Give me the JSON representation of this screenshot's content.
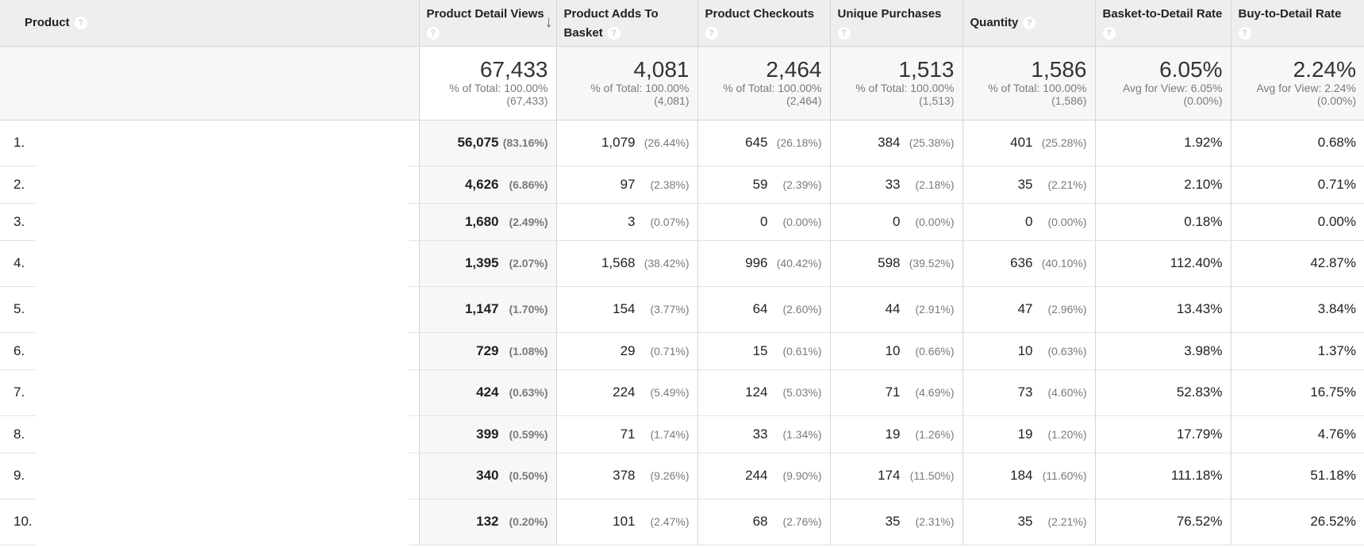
{
  "columns": {
    "product": "Product",
    "product_detail_views": "Product Detail Views",
    "product_adds": "Product Adds To Basket",
    "product_checkouts": "Product Checkouts",
    "unique_purchases": "Unique Purchases",
    "quantity": "Quantity",
    "basket_to_detail": "Basket-to-Detail Rate",
    "buy_to_detail": "Buy-to-Detail Rate"
  },
  "icons": {
    "help": "help-icon",
    "sort": "sort-descending-arrow-icon"
  },
  "totals": {
    "pdv": {
      "value": "67,433",
      "line1": "% of Total: 100.00%",
      "line2": "(67,433)"
    },
    "adds": {
      "value": "4,081",
      "line1": "% of Total: 100.00%",
      "line2": "(4,081)"
    },
    "checkouts": {
      "value": "2,464",
      "line1": "% of Total: 100.00%",
      "line2": "(2,464)"
    },
    "unique": {
      "value": "1,513",
      "line1": "% of Total: 100.00%",
      "line2": "(1,513)"
    },
    "quantity": {
      "value": "1,586",
      "line1": "% of Total: 100.00%",
      "line2": "(1,586)"
    },
    "bdr": {
      "value": "6.05%",
      "line1": "Avg for View: 6.05%",
      "line2": "(0.00%)"
    },
    "buy": {
      "value": "2.24%",
      "line1": "Avg for View: 2.24%",
      "line2": "(0.00%)"
    }
  },
  "rows": [
    {
      "index": "1.",
      "pdv": "56,075",
      "pdv_pct": "(83.16%)",
      "adds": "1,079",
      "adds_pct": "(26.44%)",
      "chk": "645",
      "chk_pct": "(26.18%)",
      "uniq": "384",
      "uniq_pct": "(25.38%)",
      "qty": "401",
      "qty_pct": "(25.28%)",
      "bdr": "1.92%",
      "buy": "0.68%"
    },
    {
      "index": "2.",
      "pdv": "4,626",
      "pdv_pct": "(6.86%)",
      "adds": "97",
      "adds_pct": "(2.38%)",
      "chk": "59",
      "chk_pct": "(2.39%)",
      "uniq": "33",
      "uniq_pct": "(2.18%)",
      "qty": "35",
      "qty_pct": "(2.21%)",
      "bdr": "2.10%",
      "buy": "0.71%"
    },
    {
      "index": "3.",
      "pdv": "1,680",
      "pdv_pct": "(2.49%)",
      "adds": "3",
      "adds_pct": "(0.07%)",
      "chk": "0",
      "chk_pct": "(0.00%)",
      "uniq": "0",
      "uniq_pct": "(0.00%)",
      "qty": "0",
      "qty_pct": "(0.00%)",
      "bdr": "0.18%",
      "buy": "0.00%"
    },
    {
      "index": "4.",
      "pdv": "1,395",
      "pdv_pct": "(2.07%)",
      "adds": "1,568",
      "adds_pct": "(38.42%)",
      "chk": "996",
      "chk_pct": "(40.42%)",
      "uniq": "598",
      "uniq_pct": "(39.52%)",
      "qty": "636",
      "qty_pct": "(40.10%)",
      "bdr": "112.40%",
      "buy": "42.87%"
    },
    {
      "index": "5.",
      "pdv": "1,147",
      "pdv_pct": "(1.70%)",
      "adds": "154",
      "adds_pct": "(3.77%)",
      "chk": "64",
      "chk_pct": "(2.60%)",
      "uniq": "44",
      "uniq_pct": "(2.91%)",
      "qty": "47",
      "qty_pct": "(2.96%)",
      "bdr": "13.43%",
      "buy": "3.84%"
    },
    {
      "index": "6.",
      "pdv": "729",
      "pdv_pct": "(1.08%)",
      "adds": "29",
      "adds_pct": "(0.71%)",
      "chk": "15",
      "chk_pct": "(0.61%)",
      "uniq": "10",
      "uniq_pct": "(0.66%)",
      "qty": "10",
      "qty_pct": "(0.63%)",
      "bdr": "3.98%",
      "buy": "1.37%"
    },
    {
      "index": "7.",
      "pdv": "424",
      "pdv_pct": "(0.63%)",
      "adds": "224",
      "adds_pct": "(5.49%)",
      "chk": "124",
      "chk_pct": "(5.03%)",
      "uniq": "71",
      "uniq_pct": "(4.69%)",
      "qty": "73",
      "qty_pct": "(4.60%)",
      "bdr": "52.83%",
      "buy": "16.75%"
    },
    {
      "index": "8.",
      "pdv": "399",
      "pdv_pct": "(0.59%)",
      "adds": "71",
      "adds_pct": "(1.74%)",
      "chk": "33",
      "chk_pct": "(1.34%)",
      "uniq": "19",
      "uniq_pct": "(1.26%)",
      "qty": "19",
      "qty_pct": "(1.20%)",
      "bdr": "17.79%",
      "buy": "4.76%"
    },
    {
      "index": "9.",
      "pdv": "340",
      "pdv_pct": "(0.50%)",
      "adds": "378",
      "adds_pct": "(9.26%)",
      "chk": "244",
      "chk_pct": "(9.90%)",
      "uniq": "174",
      "uniq_pct": "(11.50%)",
      "qty": "184",
      "qty_pct": "(11.60%)",
      "bdr": "111.18%",
      "buy": "51.18%"
    },
    {
      "index": "10.",
      "pdv": "132",
      "pdv_pct": "(0.20%)",
      "adds": "101",
      "adds_pct": "(2.47%)",
      "chk": "68",
      "chk_pct": "(2.76%)",
      "uniq": "35",
      "uniq_pct": "(2.31%)",
      "qty": "35",
      "qty_pct": "(2.21%)",
      "bdr": "76.52%",
      "buy": "26.52%"
    }
  ]
}
